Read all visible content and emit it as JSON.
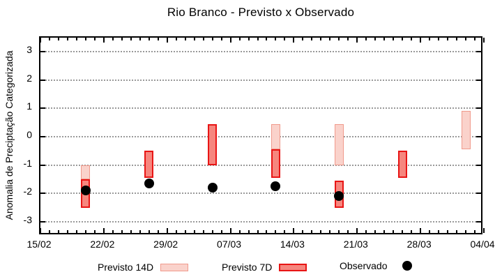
{
  "chart_data": {
    "type": "bar",
    "subtype": "ranged-interval-bars-with-dots",
    "title": "Rio Branco - Previsto x Observado",
    "xlabel": "",
    "ylabel": "Anomalia de Preciptação Categorizada",
    "grid": "horizontal-dotted",
    "grid_color": "#999999",
    "legend_position": "bottom-outside",
    "x_axis": {
      "tick_labels": [
        "15/02",
        "22/02",
        "29/02",
        "07/03",
        "14/03",
        "21/03",
        "28/03",
        "04/04"
      ],
      "tick_interval_days": 7,
      "minor_tick_days": 1,
      "range_days": 49
    },
    "y_axis": {
      "min": -3,
      "max": 3,
      "ticks": [
        3,
        2,
        1,
        0,
        -1,
        -2,
        -3
      ]
    },
    "series": [
      {
        "name": "Previsto 14D",
        "type": "range-box",
        "fill": "#FAD2CB",
        "stroke": "#F09A8C",
        "stroke_width": 1.5,
        "points": [
          {
            "date": "20/02",
            "day": 5,
            "hi": -1.0,
            "lo": -1.5
          },
          {
            "date": "12/03",
            "day": 26,
            "hi": 0.45,
            "lo": -0.45
          },
          {
            "date": "19/03",
            "day": 33,
            "hi": 0.45,
            "lo": -1.0
          },
          {
            "date": "02/04",
            "day": 47,
            "hi": 0.9,
            "lo": -0.45
          }
        ]
      },
      {
        "name": "Previsto 7D",
        "type": "range-box",
        "fill": "#F6867E",
        "stroke": "#E81515",
        "stroke_width": 2,
        "points": [
          {
            "date": "20/02",
            "day": 5,
            "hi": -1.5,
            "lo": -2.5
          },
          {
            "date": "27/02",
            "day": 12,
            "hi": -0.5,
            "lo": -1.45
          },
          {
            "date": "05/03",
            "day": 19,
            "hi": 0.45,
            "lo": -1.0
          },
          {
            "date": "12/03",
            "day": 26,
            "hi": -0.45,
            "lo": -1.45
          },
          {
            "date": "19/03",
            "day": 33,
            "hi": -1.55,
            "lo": -2.5
          },
          {
            "date": "26/03",
            "day": 40,
            "hi": -0.5,
            "lo": -1.45
          }
        ]
      },
      {
        "name": "Observado",
        "type": "dot",
        "fill": "#000000",
        "points": [
          {
            "date": "20/02",
            "day": 5,
            "value": -1.9
          },
          {
            "date": "27/02",
            "day": 12,
            "value": -1.65
          },
          {
            "date": "05/03",
            "day": 19,
            "value": -1.8
          },
          {
            "date": "12/03",
            "day": 26,
            "value": -1.75
          },
          {
            "date": "19/03",
            "day": 33,
            "value": -2.1
          }
        ]
      }
    ]
  }
}
